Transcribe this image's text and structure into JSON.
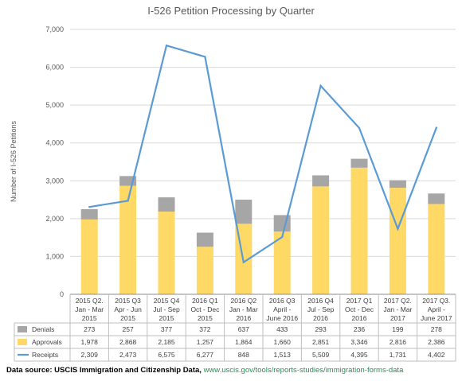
{
  "source": {
    "label": "Data source: USCIS Immigration and Citizenship Data,",
    "url": "www.uscis.gov/tools/reports-studies/immigration-forms-data"
  },
  "colors": {
    "denials": "#a6a6a6",
    "approvals": "#ffd966",
    "receipts": "#5b9bd5",
    "grid": "#d9d9d9",
    "table_border": "#bfbfbf"
  },
  "chart_data": {
    "type": "bar",
    "stacked": true,
    "title": "I-526 Petition Processing by Quarter",
    "ylabel": "Number of I-526 Petitions",
    "ylim": [
      0,
      7000
    ],
    "yticks": [
      "0",
      "1,000",
      "2,000",
      "3,000",
      "4,000",
      "5,000",
      "6,000",
      "7,000"
    ],
    "ytick_values": [
      0,
      1000,
      2000,
      3000,
      4000,
      5000,
      6000,
      7000
    ],
    "grid": true,
    "legend_placement": "data-table",
    "categories": [
      [
        "2015 Q2.",
        "Jan - Mar",
        "2015"
      ],
      [
        "2015 Q3",
        "Apr - Jun",
        "2015"
      ],
      [
        "2015 Q4",
        "Jul - Sep",
        "2015"
      ],
      [
        "2016 Q1",
        "Oct - Dec",
        "2015"
      ],
      [
        "2016 Q2",
        "Jan - Mar",
        "2016"
      ],
      [
        "2016 Q3",
        "April -",
        "June 2016"
      ],
      [
        "2016 Q4",
        "Jul - Sep",
        "2016"
      ],
      [
        "2017 Q1",
        "Oct - Dec",
        "2016"
      ],
      [
        "2017 Q2.",
        "Jan - Mar",
        "2017"
      ],
      [
        "2017 Q3.",
        "April -",
        "June 2017"
      ]
    ],
    "series": [
      {
        "name": "Denials",
        "kind": "bar",
        "values": [
          273,
          257,
          377,
          372,
          637,
          433,
          293,
          236,
          199,
          278
        ],
        "labels": [
          "273",
          "257",
          "377",
          "372",
          "637",
          "433",
          "293",
          "236",
          "199",
          "278"
        ]
      },
      {
        "name": "Approvals",
        "kind": "bar",
        "values": [
          1978,
          2868,
          2185,
          1257,
          1864,
          1660,
          2851,
          3346,
          2816,
          2386
        ],
        "labels": [
          "1,978",
          "2,868",
          "2,185",
          "1,257",
          "1,864",
          "1,660",
          "2,851",
          "3,346",
          "2,816",
          "2,386"
        ]
      },
      {
        "name": "Receipts",
        "kind": "line",
        "values": [
          2309,
          2473,
          6575,
          6277,
          848,
          1513,
          5509,
          4395,
          1731,
          4402
        ],
        "labels": [
          "2,309",
          "2,473",
          "6,575",
          "6,277",
          "848",
          "1,513",
          "5,509",
          "4,395",
          "1,731",
          "4,402"
        ]
      }
    ]
  }
}
